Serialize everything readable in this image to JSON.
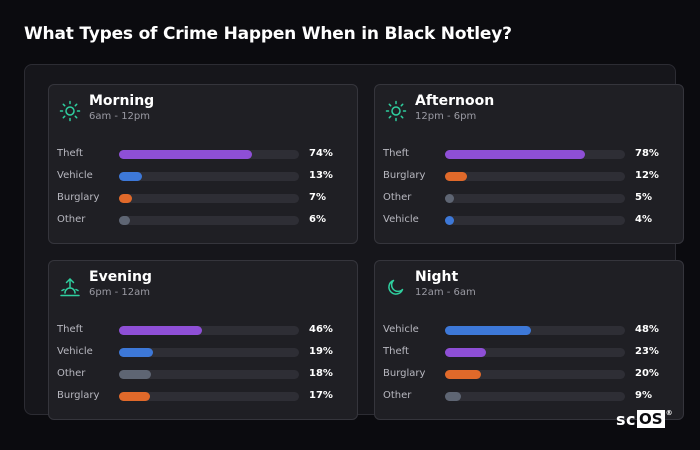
{
  "title": "What Types of Crime Happen When in Black Notley?",
  "colors": {
    "theft": "#8e4fd6",
    "vehicle": "#3d78d8",
    "burglary": "#e0692a",
    "other": "#5e6573",
    "icon": "#2fcf9f"
  },
  "cards": [
    {
      "title": "Morning",
      "time": "6am - 12pm",
      "icon": "sun-icon",
      "rows": [
        {
          "label": "Theft",
          "percent": 74,
          "pct_text": "74%",
          "color": "#8e4fd6"
        },
        {
          "label": "Vehicle",
          "percent": 13,
          "pct_text": "13%",
          "color": "#3d78d8"
        },
        {
          "label": "Burglary",
          "percent": 7,
          "pct_text": "7%",
          "color": "#e0692a"
        },
        {
          "label": "Other",
          "percent": 6,
          "pct_text": "6%",
          "color": "#5e6573"
        }
      ]
    },
    {
      "title": "Afternoon",
      "time": "12pm - 6pm",
      "icon": "sun-icon",
      "rows": [
        {
          "label": "Theft",
          "percent": 78,
          "pct_text": "78%",
          "color": "#8e4fd6"
        },
        {
          "label": "Burglary",
          "percent": 12,
          "pct_text": "12%",
          "color": "#e0692a"
        },
        {
          "label": "Other",
          "percent": 5,
          "pct_text": "5%",
          "color": "#5e6573"
        },
        {
          "label": "Vehicle",
          "percent": 4,
          "pct_text": "4%",
          "color": "#3d78d8"
        }
      ]
    },
    {
      "title": "Evening",
      "time": "6pm - 12am",
      "icon": "sunset-icon",
      "rows": [
        {
          "label": "Theft",
          "percent": 46,
          "pct_text": "46%",
          "color": "#8e4fd6"
        },
        {
          "label": "Vehicle",
          "percent": 19,
          "pct_text": "19%",
          "color": "#3d78d8"
        },
        {
          "label": "Other",
          "percent": 18,
          "pct_text": "18%",
          "color": "#5e6573"
        },
        {
          "label": "Burglary",
          "percent": 17,
          "pct_text": "17%",
          "color": "#e0692a"
        }
      ]
    },
    {
      "title": "Night",
      "time": "12am - 6am",
      "icon": "moon-icon",
      "rows": [
        {
          "label": "Vehicle",
          "percent": 48,
          "pct_text": "48%",
          "color": "#3d78d8"
        },
        {
          "label": "Theft",
          "percent": 23,
          "pct_text": "23%",
          "color": "#8e4fd6"
        },
        {
          "label": "Burglary",
          "percent": 20,
          "pct_text": "20%",
          "color": "#e0692a"
        },
        {
          "label": "Other",
          "percent": 9,
          "pct_text": "9%",
          "color": "#5e6573"
        }
      ]
    }
  ],
  "brand": {
    "sc": "sc",
    "os": "OS",
    "reg": "®"
  }
}
